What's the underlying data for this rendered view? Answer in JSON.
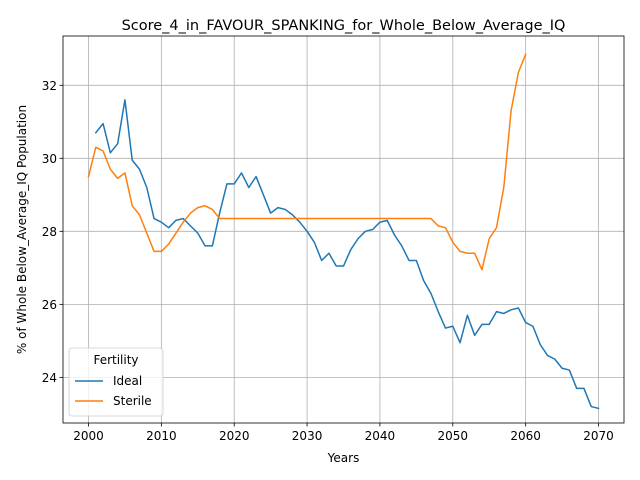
{
  "chart_data": {
    "type": "line",
    "title": "Score_4_in_FAVOUR_SPANKING_for_Whole_Below_Average_IQ",
    "xlabel": "Years",
    "ylabel": "% of Whole Below_Average_IQ Population",
    "xlim": [
      1996.5,
      2073.5
    ],
    "ylim": [
      22.75,
      33.35
    ],
    "xticks": [
      2000,
      2010,
      2020,
      2030,
      2040,
      2050,
      2060,
      2070
    ],
    "yticks": [
      24,
      26,
      28,
      30,
      32
    ],
    "grid": true,
    "legend": {
      "title": "Fertility",
      "placement": "lower-left"
    },
    "series": [
      {
        "name": "Ideal",
        "color": "#1f77b4",
        "x": [
          2001,
          2002,
          2003,
          2004,
          2005,
          2006,
          2007,
          2008,
          2009,
          2010,
          2011,
          2012,
          2013,
          2014,
          2015,
          2016,
          2017,
          2018,
          2019,
          2020,
          2021,
          2022,
          2023,
          2024,
          2025,
          2026,
          2027,
          2028,
          2029,
          2030,
          2031,
          2032,
          2033,
          2034,
          2035,
          2036,
          2037,
          2038,
          2039,
          2040,
          2041,
          2042,
          2043,
          2044,
          2045,
          2046,
          2047,
          2048,
          2049,
          2050,
          2051,
          2052,
          2053,
          2054,
          2055,
          2056,
          2057,
          2058,
          2059,
          2060,
          2061,
          2062,
          2063,
          2064,
          2065,
          2066,
          2067,
          2068,
          2069,
          2070
        ],
        "values": [
          30.7,
          30.95,
          30.15,
          30.4,
          31.6,
          29.95,
          29.7,
          29.2,
          28.35,
          28.25,
          28.1,
          28.3,
          28.35,
          28.15,
          27.95,
          27.6,
          27.6,
          28.5,
          29.3,
          29.3,
          29.6,
          29.2,
          29.5,
          29.0,
          28.5,
          28.65,
          28.6,
          28.45,
          28.25,
          28.0,
          27.7,
          27.2,
          27.4,
          27.05,
          27.05,
          27.5,
          27.8,
          28.0,
          28.05,
          28.25,
          28.3,
          27.9,
          27.6,
          27.2,
          27.2,
          26.65,
          26.3,
          25.8,
          25.35,
          25.4,
          24.95,
          25.7,
          25.15,
          25.45,
          25.45,
          25.8,
          25.75,
          25.85,
          25.9,
          25.5,
          25.4,
          24.9,
          24.6,
          24.5,
          24.25,
          24.2,
          23.7,
          23.7,
          23.2,
          23.15
        ]
      },
      {
        "name": "Sterile",
        "color": "#ff7f0e",
        "x": [
          2000,
          2001,
          2002,
          2003,
          2004,
          2005,
          2006,
          2007,
          2008,
          2009,
          2010,
          2011,
          2012,
          2013,
          2014,
          2015,
          2016,
          2017,
          2018,
          2019,
          2020,
          2021,
          2022,
          2023,
          2024,
          2025,
          2026,
          2027,
          2028,
          2029,
          2030,
          2031,
          2032,
          2033,
          2034,
          2035,
          2036,
          2037,
          2038,
          2039,
          2040,
          2041,
          2042,
          2043,
          2044,
          2045,
          2046,
          2047,
          2048,
          2049,
          2050,
          2051,
          2052,
          2053,
          2054,
          2055,
          2056,
          2057,
          2058,
          2059,
          2060
        ],
        "values": [
          29.5,
          30.3,
          30.2,
          29.7,
          29.45,
          29.6,
          28.7,
          28.45,
          27.95,
          27.45,
          27.45,
          27.65,
          27.95,
          28.25,
          28.5,
          28.65,
          28.7,
          28.6,
          28.35,
          28.35,
          28.35,
          28.35,
          28.35,
          28.35,
          28.35,
          28.35,
          28.35,
          28.35,
          28.35,
          28.35,
          28.35,
          28.35,
          28.35,
          28.35,
          28.35,
          28.35,
          28.35,
          28.35,
          28.35,
          28.35,
          28.35,
          28.35,
          28.35,
          28.35,
          28.35,
          28.35,
          28.35,
          28.35,
          28.15,
          28.1,
          27.7,
          27.45,
          27.4,
          27.4,
          26.95,
          27.8,
          28.1,
          29.2,
          31.3,
          32.35,
          32.85
        ]
      }
    ]
  }
}
